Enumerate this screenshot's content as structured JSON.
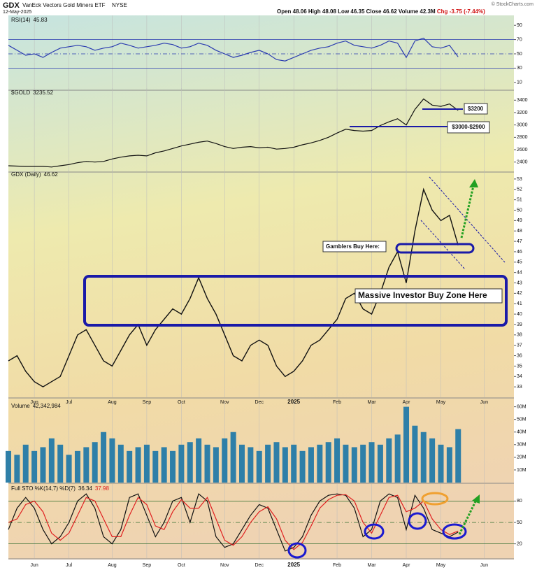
{
  "header": {
    "symbol": "GDX",
    "name": "VanEck Vectors Gold Miners ETF",
    "exchange": "NYSE",
    "date": "12-May-2025",
    "quote": [
      "Open 48.06",
      "High 48.08",
      "Low 46.35",
      "Close 46.62",
      "Volume 42.3M"
    ],
    "change": "Chg -3.75 (-7.44%)",
    "credit": "© StockCharts.com"
  },
  "chart_data": [
    {
      "type": "line",
      "title": "RSI(14)",
      "ylim": [
        0,
        100
      ],
      "yticks": [
        90,
        70,
        50,
        30,
        10
      ],
      "hlines": [
        70,
        50,
        30
      ],
      "series": [
        {
          "name": "RSI(14)",
          "color": "#2a3bb0",
          "values": [
            62,
            55,
            48,
            50,
            45,
            52,
            58,
            60,
            62,
            60,
            55,
            58,
            60,
            65,
            62,
            58,
            60,
            62,
            65,
            63,
            58,
            60,
            65,
            62,
            55,
            50,
            45,
            48,
            52,
            55,
            50,
            42,
            40,
            45,
            50,
            55,
            58,
            60,
            65,
            68,
            62,
            60,
            58,
            62,
            68,
            65,
            45,
            68,
            72,
            60,
            58,
            62,
            45.83,
            null,
            null,
            null,
            null,
            null
          ]
        }
      ]
    },
    {
      "type": "line",
      "title": "$GOLD",
      "ylim": [
        2250,
        3550
      ],
      "yticks": [
        3400,
        3200,
        3000,
        2800,
        2600,
        2400
      ],
      "annotations": [
        "$3200",
        "$3000-$2900"
      ],
      "series": [
        {
          "name": "$GOLD",
          "color": "#111111",
          "values": [
            2340,
            2335,
            2330,
            2330,
            2330,
            2320,
            2340,
            2360,
            2390,
            2410,
            2400,
            2410,
            2450,
            2480,
            2500,
            2510,
            2500,
            2550,
            2580,
            2620,
            2660,
            2690,
            2720,
            2740,
            2700,
            2650,
            2620,
            2640,
            2650,
            2630,
            2640,
            2610,
            2620,
            2640,
            2680,
            2710,
            2750,
            2800,
            2870,
            2930,
            2910,
            2900,
            2910,
            2990,
            3050,
            3100,
            3000,
            3250,
            3420,
            3320,
            3300,
            3340,
            3235.52,
            null,
            null,
            null,
            null,
            null
          ]
        }
      ]
    },
    {
      "type": "line",
      "title": "GDX (Daily)",
      "ylim": [
        32,
        53.6
      ],
      "yticks": [
        53,
        52,
        51,
        50,
        49,
        48,
        47,
        46,
        45,
        44,
        43,
        42,
        41,
        40,
        39,
        38,
        37,
        36,
        35,
        34,
        33
      ],
      "annotations": [
        "Gamblers Buy Here:",
        "Massive Investor Buy Zone Here"
      ],
      "categories": [
        null,
        null,
        null,
        "Jun",
        null,
        null,
        null,
        "Jul",
        null,
        null,
        null,
        null,
        "Aug",
        null,
        null,
        null,
        "Sep",
        null,
        null,
        null,
        "Oct",
        null,
        null,
        null,
        null,
        "Nov",
        null,
        null,
        null,
        "Dec",
        null,
        null,
        null,
        "2025",
        null,
        null,
        null,
        null,
        "Feb",
        null,
        null,
        null,
        "Mar",
        null,
        null,
        null,
        "Apr",
        null,
        null,
        null,
        "May",
        null,
        null,
        null,
        null,
        "Jun",
        null,
        null
      ],
      "series": [
        {
          "name": "GDX (Daily)",
          "color": "#111111",
          "values": [
            35.5,
            36,
            34.5,
            33.5,
            33,
            33.5,
            34,
            36,
            38,
            38.5,
            37,
            35.5,
            35,
            36.5,
            38,
            39,
            37,
            38.5,
            39.5,
            40.5,
            40,
            41.5,
            43.5,
            41.5,
            40,
            38,
            36,
            35.5,
            37,
            37.5,
            37,
            35,
            34,
            34.5,
            35.5,
            37,
            37.5,
            38.5,
            39.5,
            41.5,
            42,
            40.5,
            40,
            42,
            44.5,
            46,
            43,
            48,
            52,
            50,
            49,
            49.5,
            46.62,
            null,
            null,
            null,
            null,
            null
          ]
        }
      ]
    },
    {
      "type": "bar",
      "title": "Volume",
      "ylim": [
        0,
        62
      ],
      "color": "#2e7fa8",
      "yticks": [
        {
          "value": 60,
          "label": "60M"
        },
        {
          "value": 50,
          "label": "50M"
        },
        {
          "value": 40,
          "label": "40M"
        },
        {
          "value": 30,
          "label": "30M"
        },
        {
          "value": 20,
          "label": "20M"
        },
        {
          "value": 10,
          "label": "10M"
        }
      ],
      "values": [
        25,
        22,
        30,
        25,
        28,
        35,
        30,
        22,
        25,
        28,
        32,
        40,
        35,
        30,
        25,
        28,
        30,
        25,
        28,
        25,
        30,
        32,
        35,
        30,
        28,
        35,
        40,
        30,
        28,
        25,
        30,
        32,
        28,
        30,
        25,
        28,
        30,
        32,
        35,
        30,
        28,
        30,
        32,
        30,
        35,
        38,
        60,
        45,
        40,
        35,
        30,
        28,
        42.342984,
        null,
        null,
        null,
        null,
        null
      ],
      "value_labels": [
        null,
        null,
        null,
        null,
        null,
        null,
        null,
        null,
        null,
        null,
        null,
        null,
        null,
        null,
        null,
        null,
        null,
        null,
        null,
        null,
        null,
        null,
        null,
        null,
        null,
        null,
        null,
        null,
        null,
        null,
        null,
        null,
        null,
        null,
        null,
        null,
        null,
        null,
        null,
        null,
        null,
        null,
        null,
        null,
        null,
        null,
        null,
        null,
        null,
        null,
        null,
        null,
        "42,342,984",
        null,
        null,
        null,
        null,
        null
      ]
    },
    {
      "type": "line",
      "title": "Full STO %K(14,7) %D(7)",
      "ylim": [
        0,
        100
      ],
      "yticks": [
        80,
        50,
        20
      ],
      "hlines": [
        80,
        50,
        20
      ],
      "categories": [
        null,
        null,
        null,
        "Jun",
        null,
        null,
        null,
        "Jul",
        null,
        null,
        null,
        null,
        "Aug",
        null,
        null,
        null,
        "Sep",
        null,
        null,
        null,
        "Oct",
        null,
        null,
        null,
        null,
        "Nov",
        null,
        null,
        null,
        "Dec",
        null,
        null,
        null,
        "2025",
        null,
        null,
        null,
        null,
        "Feb",
        null,
        null,
        null,
        "Mar",
        null,
        null,
        null,
        "Apr",
        null,
        null,
        null,
        "May",
        null,
        null,
        null,
        null,
        "Jun",
        null,
        null
      ],
      "series": [
        {
          "name": "%K(14,7)",
          "color": "#111111",
          "values": [
            40,
            70,
            85,
            70,
            40,
            20,
            30,
            50,
            80,
            90,
            70,
            30,
            20,
            40,
            85,
            90,
            60,
            30,
            50,
            80,
            85,
            50,
            90,
            80,
            30,
            15,
            20,
            40,
            60,
            75,
            70,
            40,
            10,
            15,
            30,
            60,
            80,
            88,
            90,
            88,
            70,
            30,
            40,
            80,
            90,
            85,
            40,
            88,
            70,
            40,
            35,
            30,
            36.34,
            null,
            null,
            null,
            null,
            null
          ]
        },
        {
          "name": "%D(7)",
          "color": "#e02020",
          "values": [
            50,
            55,
            75,
            80,
            65,
            35,
            25,
            35,
            60,
            85,
            80,
            55,
            30,
            30,
            60,
            85,
            75,
            45,
            40,
            65,
            82,
            70,
            70,
            85,
            55,
            25,
            18,
            30,
            50,
            65,
            72,
            55,
            25,
            12,
            22,
            45,
            70,
            82,
            88,
            89,
            80,
            50,
            35,
            60,
            85,
            88,
            65,
            70,
            80,
            55,
            40,
            33,
            37.98,
            null,
            null,
            null,
            null,
            null
          ]
        }
      ]
    }
  ]
}
